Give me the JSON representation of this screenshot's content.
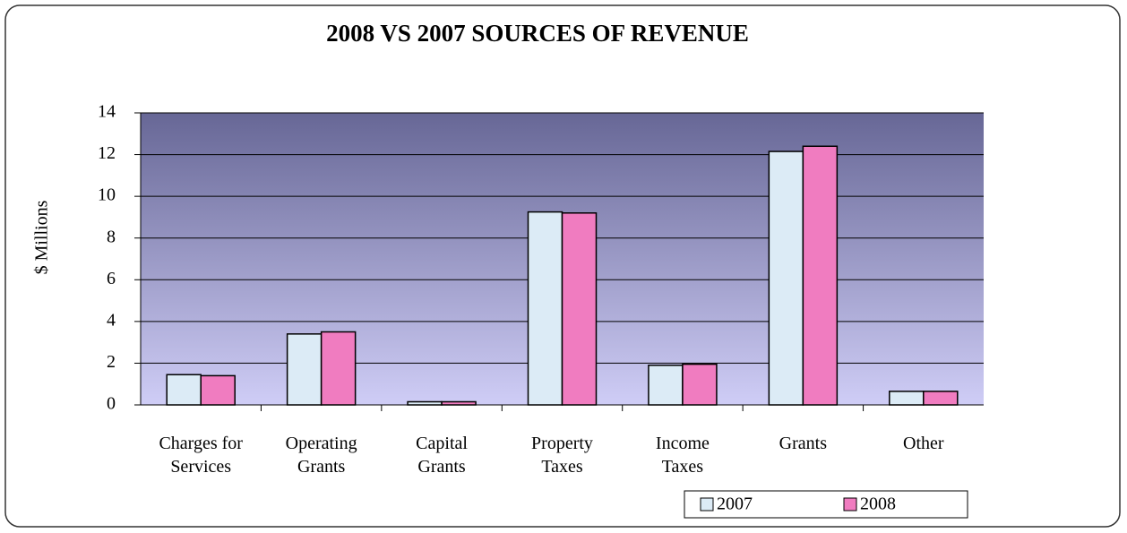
{
  "chart_data": {
    "type": "bar",
    "title": "2008 VS 2007 SOURCES OF REVENUE",
    "y_label": "$ Millions",
    "categories": [
      "Charges for Services",
      "Operating Grants",
      "Capital Grants",
      "Property Taxes",
      "Income Taxes",
      "Grants",
      "Other"
    ],
    "series": [
      {
        "name": "2007",
        "color": "#dcebf6",
        "values": [
          1.45,
          3.4,
          0.15,
          9.25,
          1.9,
          12.15,
          0.65
        ]
      },
      {
        "name": "2008",
        "color": "#f07cc0",
        "values": [
          1.4,
          3.5,
          0.15,
          9.2,
          1.95,
          12.4,
          0.65
        ]
      }
    ],
    "ylim": [
      0,
      14
    ],
    "yticks": [
      0,
      2,
      4,
      6,
      8,
      10,
      12,
      14
    ],
    "grid": true,
    "legend": "bottom-right"
  }
}
